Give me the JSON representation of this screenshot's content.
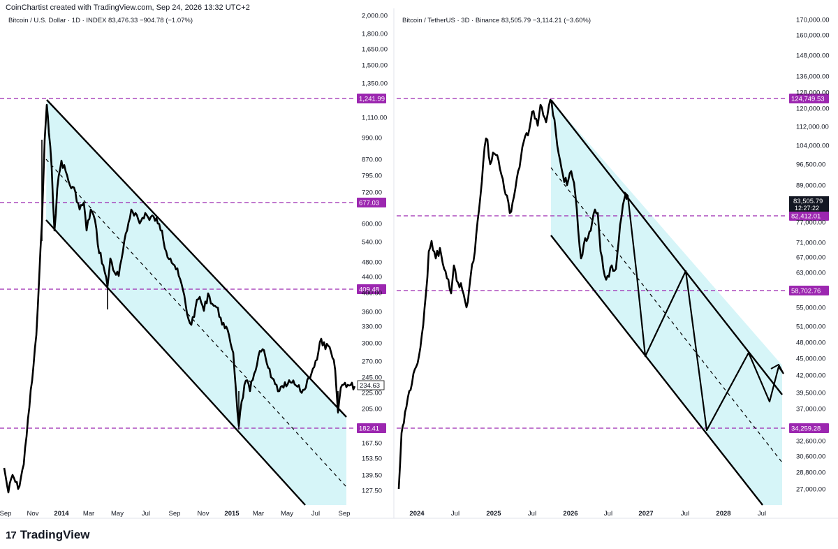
{
  "header": {
    "text": "CoinChartist created with TradingView.com, Sep 24, 2026 13:32 UTC+2"
  },
  "brand": {
    "name": "TradingView",
    "logo_glyph": "17"
  },
  "colors": {
    "line": "#000000",
    "channel_fill": "#d6f5f8",
    "level": "#9c27b0",
    "axis_text": "#131722"
  },
  "charts": [
    {
      "title": "Bitcoin / U.S. Dollar · 1D · INDEX  83,476.33  −904.78 (−1.07%)",
      "price_tag": "234.63",
      "x_ticks": [
        "Sep",
        "Nov",
        "2014",
        "Mar",
        "May",
        "Jul",
        "Sep",
        "Nov",
        "2015",
        "Mar",
        "May",
        "Jul",
        "Sep"
      ],
      "y_ticks": [
        "2,000.00",
        "1,800.00",
        "1,650.00",
        "1,500.00",
        "1,350.00",
        "1,110.00",
        "990.00",
        "870.00",
        "795.00",
        "720.00",
        "600.00",
        "540.00",
        "480.00",
        "440.00",
        "400.00",
        "360.00",
        "330.00",
        "300.00",
        "270.00",
        "245.00",
        "225.00",
        "205.00",
        "167.50",
        "153.50",
        "139.50",
        "127.50"
      ],
      "levels": [
        "1,241.99",
        "677.03",
        "409.48",
        "182.41"
      ]
    },
    {
      "title": "Bitcoin / TetherUS · 3D · Binance  83,505.79  −3,114.21 (−3.60%)",
      "price_tag": {
        "price": "83,505.79",
        "countdown": "12:27:22"
      },
      "x_ticks": [
        "2024",
        "Jul",
        "2025",
        "Jul",
        "2026",
        "Jul",
        "2027",
        "Jul",
        "2028",
        "Jul"
      ],
      "y_ticks": [
        "170,000.00",
        "160,000.00",
        "148,000.00",
        "136,000.00",
        "128,000.00",
        "120,000.00",
        "112,000.00",
        "104,000.00",
        "96,500.00",
        "89,000.00",
        "77,000.00",
        "71,000.00",
        "67,000.00",
        "63,000.00",
        "55,000.00",
        "51,000.00",
        "48,000.00",
        "45,000.00",
        "42,000.00",
        "39,500.00",
        "37,000.00",
        "32,600.00",
        "30,600.00",
        "28,800.00",
        "27,000.00"
      ],
      "levels": [
        "124,749.53",
        "82,412.01",
        "58,702.76",
        "34,259.28"
      ]
    }
  ]
}
